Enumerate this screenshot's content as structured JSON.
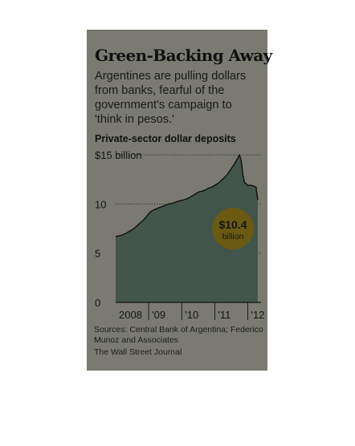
{
  "card": {
    "background": "#7a7a72"
  },
  "title": "Green-Backing Away",
  "subtitle_lines": [
    "Argentines are pulling dollars",
    "from banks, fearful of the",
    "government's campaign to",
    "'think in pesos.'"
  ],
  "chart_data": {
    "type": "area",
    "title": "Green-Backing Away",
    "subtitle": "Argentines are pulling dollars from banks, fearful of the government's campaign to 'think in pesos.'",
    "series_label": "Private-sector dollar deposits",
    "ylim": [
      0,
      15
    ],
    "yticks": [
      {
        "value": 15,
        "label": "$15 billion"
      },
      {
        "value": 10,
        "label": "10"
      },
      {
        "value": 5,
        "label": "5"
      },
      {
        "value": 0,
        "label": "0"
      }
    ],
    "xlim": [
      2008.0,
      2012.4
    ],
    "xticks": [
      {
        "value": 2008.0,
        "label": "2008"
      },
      {
        "value": 2009.0,
        "label": "'09"
      },
      {
        "value": 2010.0,
        "label": "'10"
      },
      {
        "value": 2011.0,
        "label": "'11"
      },
      {
        "value": 2012.0,
        "label": "'12"
      }
    ],
    "grid": {
      "horizontal": "dotted"
    },
    "series": [
      {
        "color": "#42554a",
        "x": [
          2008.0,
          2008.15,
          2008.3,
          2008.45,
          2008.55,
          2008.65,
          2008.75,
          2008.85,
          2008.95,
          2009.05,
          2009.15,
          2009.3,
          2009.45,
          2009.6,
          2009.75,
          2009.9,
          2010.05,
          2010.2,
          2010.35,
          2010.5,
          2010.6,
          2010.7,
          2010.8,
          2010.9,
          2011.0,
          2011.1,
          2011.2,
          2011.3,
          2011.4,
          2011.5,
          2011.6,
          2011.7,
          2011.75,
          2011.8,
          2011.85,
          2011.9,
          2012.0,
          2012.1,
          2012.2,
          2012.25,
          2012.3
        ],
        "y": [
          6.7,
          6.8,
          7.0,
          7.3,
          7.5,
          7.8,
          8.1,
          8.4,
          8.8,
          9.2,
          9.4,
          9.6,
          9.8,
          10.0,
          10.1,
          10.3,
          10.4,
          10.6,
          10.9,
          11.2,
          11.3,
          11.4,
          11.6,
          11.7,
          11.9,
          12.1,
          12.4,
          12.7,
          13.1,
          13.6,
          14.1,
          14.7,
          15.0,
          14.4,
          13.0,
          12.2,
          11.9,
          11.9,
          11.8,
          11.7,
          10.4
        ]
      }
    ],
    "annotation": {
      "value": "$10.4",
      "unit": "billion",
      "color": "#6b5a12"
    }
  },
  "sources": [
    "Sources: Central Bank of Argentina; Federico",
    "Munoz and Associates"
  ],
  "credit": "The Wall Street Journal"
}
